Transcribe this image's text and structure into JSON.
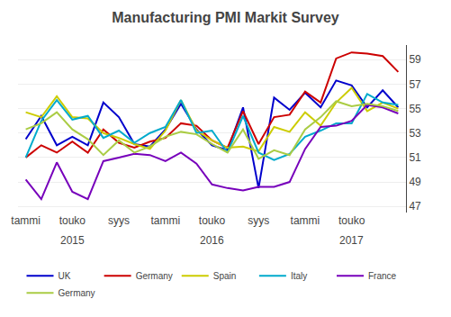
{
  "chart_data": {
    "type": "line",
    "title": "Manufacturing PMI Markit Survey",
    "categories": [
      "tammi",
      null,
      null,
      "touko",
      null,
      null,
      "syys",
      null,
      null,
      "tammi",
      null,
      null,
      "touko",
      null,
      null,
      "syys",
      null,
      null,
      "tammi",
      null,
      null,
      "touko",
      null,
      null,
      null
    ],
    "series": [
      {
        "name": "UK",
        "color": "#0000CC",
        "values": [
          52.5,
          54.4,
          52.0,
          52.7,
          52.0,
          55.5,
          54.3,
          52.1,
          51.9,
          53.3,
          55.4,
          53.3,
          52.0,
          51.6,
          55.1,
          48.5,
          55.9,
          54.9,
          56.3,
          55.1,
          57.3,
          56.9,
          55.1,
          56.5,
          55.1
        ]
      },
      {
        "name": "Germany",
        "color": "#CC0000",
        "values": [
          51.0,
          52.0,
          51.4,
          52.3,
          51.4,
          53.3,
          52.2,
          51.8,
          52.3,
          52.6,
          53.8,
          53.6,
          52.4,
          51.8,
          54.8,
          52.1,
          54.3,
          54.5,
          56.4,
          55.5,
          59.1,
          59.6,
          59.5,
          59.3,
          58.0
        ]
      },
      {
        "name": "Spain",
        "color": "#CCCC00",
        "values": [
          54.7,
          54.3,
          56.0,
          54.3,
          54.2,
          53.0,
          52.6,
          52.1,
          51.7,
          53.2,
          55.7,
          53.2,
          52.4,
          51.8,
          51.9,
          51.5,
          53.5,
          53.1,
          54.7,
          53.6,
          55.5,
          56.7,
          54.8,
          55.5,
          55.0
        ]
      },
      {
        "name": "Italy",
        "color": "#00AACC",
        "values": [
          51.0,
          54.0,
          55.7,
          54.1,
          54.4,
          52.6,
          53.2,
          52.2,
          53.0,
          53.5,
          55.7,
          53.0,
          53.2,
          51.4,
          54.4,
          51.4,
          50.8,
          51.3,
          52.7,
          53.2,
          53.8,
          53.8,
          56.2,
          55.5,
          55.3
        ]
      },
      {
        "name": "France",
        "color": "#7700BB",
        "values": [
          49.2,
          47.6,
          50.6,
          48.2,
          47.6,
          50.7,
          51.0,
          51.3,
          51.2,
          50.7,
          51.4,
          50.5,
          48.8,
          48.5,
          48.3,
          48.6,
          48.6,
          49.0,
          51.7,
          53.5,
          53.6,
          54.0,
          55.3,
          55.1,
          54.6
        ]
      },
      {
        "name": "Germany",
        "color": "#AACC44",
        "values": [
          53.3,
          53.8,
          54.7,
          53.3,
          52.5,
          51.2,
          52.4,
          51.4,
          51.9,
          52.7,
          53.1,
          52.9,
          52.1,
          51.4,
          53.3,
          50.9,
          51.6,
          51.2,
          53.3,
          54.3,
          55.6,
          55.2,
          55.4,
          55.2,
          54.8
        ]
      }
    ],
    "annotations": [
      {
        "text": "2015",
        "x": 3
      },
      {
        "text": "2016",
        "x": 12
      },
      {
        "text": "2017",
        "x": 21
      }
    ],
    "ylim": [
      46.5,
      60.2
    ],
    "yticks": [
      47,
      49,
      51,
      53,
      55,
      57,
      59
    ],
    "grid": true,
    "legend": "bottom"
  }
}
